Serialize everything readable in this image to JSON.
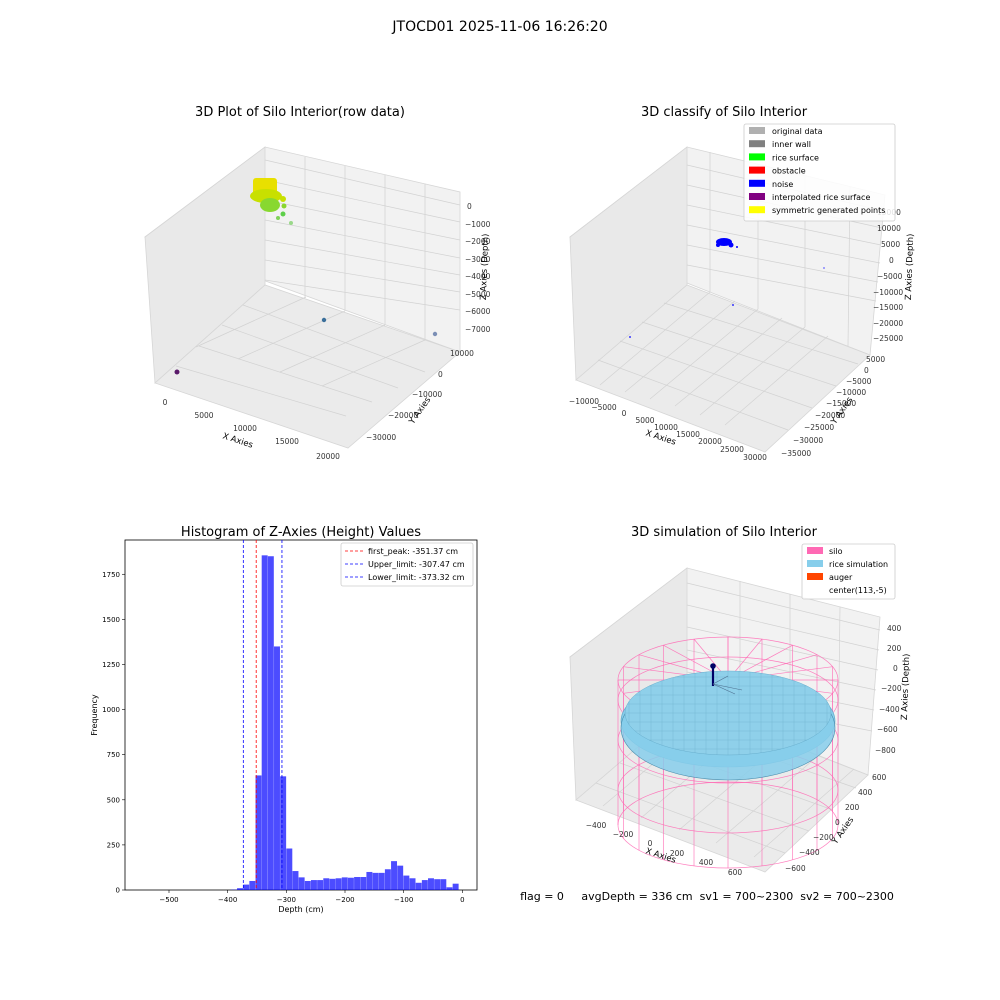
{
  "suptitle": "JTOCD01 2025-11-06 16:26:20",
  "footer": "flag = 0     avgDepth = 336 cm  sv1 = 700~2300  sv2 = 700~2300",
  "panel1": {
    "title": "3D Plot of Silo Interior(row data)",
    "xlabel": "X Axies",
    "ylabel": "Y Axies",
    "zlabel": "Z Axies (Depth)",
    "xticks": [
      "0",
      "5000",
      "10000",
      "15000",
      "20000"
    ],
    "yticks": [
      "10000",
      "0",
      "−10000",
      "−20000",
      "−30000"
    ],
    "zticks": [
      "0",
      "−1000",
      "−2000",
      "−3000",
      "−4000",
      "−5000",
      "−6000",
      "−7000"
    ]
  },
  "panel2": {
    "title": "3D classify of Silo Interior",
    "xlabel": "X Axies",
    "ylabel": "Y Axies",
    "zlabel": "Z Axies (Depth)",
    "xticks": [
      "−10000",
      "−5000",
      "0",
      "5000",
      "10000",
      "15000",
      "20000",
      "25000",
      "30000"
    ],
    "yticks": [
      "5000",
      "0",
      "−5000",
      "−10000",
      "−15000",
      "−20000",
      "−25000",
      "−30000",
      "−35000"
    ],
    "zticks": [
      "10000",
      "5000",
      "0",
      "−5000",
      "−10000",
      "−15000",
      "−20000",
      "−25000"
    ],
    "zticks_hidden": "15000",
    "legend": [
      {
        "label": "original data",
        "color": "#b0b0b0"
      },
      {
        "label": "inner wall",
        "color": "#808080"
      },
      {
        "label": "rice surface",
        "color": "#00ff00"
      },
      {
        "label": "obstacle",
        "color": "#ff0000"
      },
      {
        "label": "noise",
        "color": "#0000ff"
      },
      {
        "label": "interpolated rice surface",
        "color": "#800080"
      },
      {
        "label": "symmetric generated points",
        "color": "#ffff00"
      }
    ]
  },
  "panel4": {
    "title": "3D simulation of Silo Interior",
    "xlabel": "X Axies",
    "ylabel": "Y Axies",
    "zlabel": "Z Axies (Depth)",
    "xticks": [
      "−400",
      "−200",
      "0",
      "200",
      "400",
      "600"
    ],
    "yticks": [
      "600",
      "400",
      "200",
      "0",
      "−200",
      "−400",
      "−600"
    ],
    "zticks": [
      "400",
      "200",
      "0",
      "−200",
      "−400",
      "−600",
      "−800"
    ],
    "legend": [
      {
        "label": "silo",
        "color": "#ff69b4"
      },
      {
        "label": "rice simulation",
        "color": "#87ceeb"
      },
      {
        "label": "auger",
        "color": "#ff4500"
      },
      {
        "label": "center(113,-5)",
        "color": "none"
      }
    ]
  },
  "chart_data": {
    "type": "bar",
    "title": "Histogram of Z-Axies (Height) Values",
    "xlabel": "Depth (cm)",
    "ylabel": "Frequency",
    "xlim": [
      -575,
      25
    ],
    "ylim": [
      0,
      1940
    ],
    "xticks": [
      -500,
      -400,
      -300,
      -200,
      -100,
      0
    ],
    "yticks": [
      0,
      250,
      500,
      750,
      1000,
      1250,
      1500,
      1750
    ],
    "bin_width": 10.5,
    "bin_start": -405,
    "values": [
      0,
      2,
      10,
      30,
      50,
      635,
      1855,
      1850,
      1350,
      630,
      230,
      105,
      70,
      50,
      55,
      55,
      65,
      62,
      65,
      70,
      68,
      72,
      72,
      100,
      95,
      95,
      115,
      160,
      135,
      80,
      65,
      40,
      55,
      65,
      60,
      60,
      15,
      35
    ],
    "bar_color": "#0000ff",
    "bar_opacity": 0.7,
    "vlines": [
      {
        "label": "first_peak: -351.37 cm",
        "x": -351.37,
        "color": "#ff0000"
      },
      {
        "label": "Upper_limit: -307.47 cm",
        "x": -307.47,
        "color": "#0000ff"
      },
      {
        "label": "Lower_limit: -373.32 cm",
        "x": -373.32,
        "color": "#0000ff"
      }
    ],
    "legend_position": "top-right"
  }
}
